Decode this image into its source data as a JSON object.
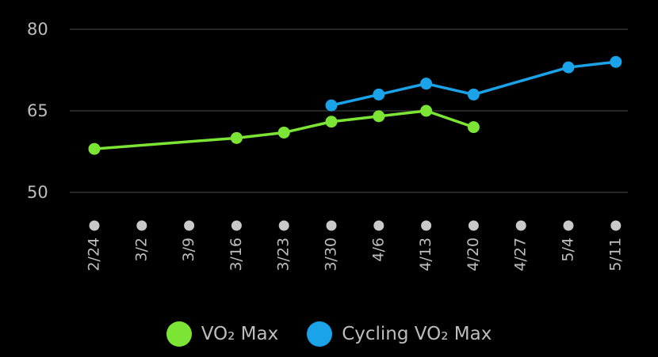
{
  "chart_data": {
    "type": "line",
    "categories": [
      "2/24",
      "3/2",
      "3/9",
      "3/16",
      "3/23",
      "3/30",
      "4/6",
      "4/13",
      "4/20",
      "4/27",
      "5/4",
      "5/11"
    ],
    "yticks": [
      "80",
      "65",
      "50"
    ],
    "ylim": [
      50,
      80
    ],
    "grid": true,
    "legend_position": "bottom",
    "series": [
      {
        "name": "VO₂ Max",
        "color": "#7be434",
        "values": [
          58,
          null,
          null,
          60,
          61,
          63,
          64,
          65,
          62,
          null,
          null,
          null
        ]
      },
      {
        "name": "Cycling VO₂ Max",
        "color": "#1aa3e8",
        "values": [
          null,
          null,
          null,
          null,
          null,
          66,
          68,
          70,
          68,
          null,
          73,
          74
        ]
      }
    ]
  },
  "colors": {
    "background": "#000000",
    "gridline": "#333333",
    "axis_text": "#bdbdbd",
    "tick_dot": "#c9c9c9"
  }
}
